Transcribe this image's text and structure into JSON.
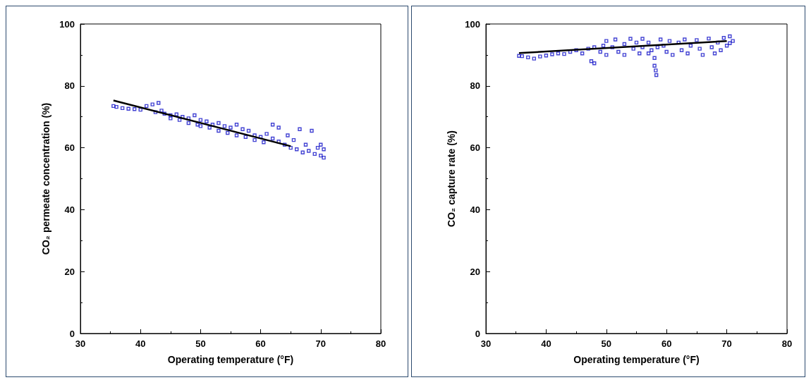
{
  "chart_data": [
    {
      "type": "scatter",
      "xlabel": "Operating temperature (°F)",
      "ylabel": "CO₂ permeate concentration (%)",
      "xlim": [
        30,
        80
      ],
      "ylim": [
        0,
        100
      ],
      "xticks": [
        30,
        40,
        50,
        60,
        70,
        80
      ],
      "yticks": [
        0,
        20,
        40,
        60,
        80,
        100
      ],
      "grid": false,
      "series": [
        {
          "marker": "square",
          "color": "#1414c8",
          "x": [
            35.5,
            36,
            37,
            38,
            39,
            40,
            41,
            42,
            42.5,
            43,
            43.5,
            44,
            45,
            45,
            46,
            46.5,
            47,
            48,
            48,
            49,
            49.5,
            50,
            50,
            51,
            51.5,
            52,
            53,
            53,
            54,
            54.5,
            55,
            56,
            56,
            57,
            57.5,
            58,
            59,
            59,
            60,
            60.5,
            61,
            62,
            62,
            63,
            63,
            64,
            64.5,
            65,
            65.5,
            66,
            66.5,
            67,
            67.5,
            68,
            68.5,
            69,
            69.5,
            70,
            70,
            70.5,
            70.5
          ],
          "values": [
            73.5,
            73.2,
            72.8,
            72.6,
            72.5,
            72.3,
            73.5,
            74,
            71.5,
            74.5,
            72,
            71,
            70.5,
            69.5,
            70.8,
            69,
            70,
            69.5,
            68,
            70.5,
            67.5,
            69,
            67,
            68.5,
            66.5,
            67.5,
            68,
            65.5,
            67,
            64.8,
            66.5,
            67.5,
            64,
            66,
            63.5,
            65.5,
            64,
            62.5,
            63.5,
            61.8,
            64.5,
            63,
            67.5,
            62,
            66.5,
            61,
            64,
            60,
            62.5,
            59.5,
            66,
            58.5,
            61,
            59,
            65.5,
            58,
            60,
            57.5,
            61,
            59.5,
            56.8
          ]
        },
        {
          "type": "line",
          "marker": "none",
          "color": "#000000",
          "x": [
            35.5,
            65
          ],
          "values": [
            75.3,
            60.5
          ]
        }
      ]
    },
    {
      "type": "scatter",
      "xlabel": "Operating temperature (°F)",
      "ylabel": "CO₂ capture rate (%)",
      "xlim": [
        30,
        80
      ],
      "ylim": [
        0,
        100
      ],
      "xticks": [
        30,
        40,
        50,
        60,
        70,
        80
      ],
      "yticks": [
        0,
        20,
        40,
        60,
        80,
        100
      ],
      "grid": false,
      "series": [
        {
          "marker": "square",
          "color": "#1414c8",
          "x": [
            35.5,
            36,
            37,
            38,
            39,
            40,
            41,
            42,
            43,
            44,
            45,
            46,
            47,
            47.5,
            48,
            48,
            49,
            49.5,
            50,
            50,
            51,
            51.5,
            52,
            53,
            53,
            54,
            54.5,
            55,
            55.5,
            56,
            56,
            57,
            57,
            57.5,
            58,
            58,
            58.2,
            58.3,
            58.5,
            59,
            59.5,
            60,
            60.5,
            61,
            62,
            62.5,
            63,
            63.5,
            64,
            65,
            65.5,
            66,
            67,
            67.5,
            68,
            68.5,
            69,
            69.5,
            70,
            70.5,
            70.5,
            71
          ],
          "values": [
            89.7,
            89.6,
            89.2,
            88.8,
            89.5,
            89.8,
            90.2,
            90.5,
            90.3,
            91,
            91.5,
            90.5,
            92,
            88,
            87.3,
            92.5,
            91,
            93,
            94.5,
            90,
            92.5,
            95,
            91,
            93.5,
            90,
            95.2,
            92,
            94,
            90.5,
            95.2,
            92.5,
            94,
            90.5,
            91.5,
            89,
            86.5,
            85,
            83.5,
            92.5,
            95,
            93,
            91,
            94.5,
            90,
            94,
            91.5,
            95,
            90.5,
            93,
            94.8,
            92,
            90,
            95.3,
            92.5,
            90.5,
            94,
            91.5,
            95.5,
            93,
            96,
            93.8,
            94.5
          ]
        },
        {
          "type": "line",
          "marker": "none",
          "color": "#000000",
          "x": [
            35.5,
            70
          ],
          "values": [
            90.6,
            94.5
          ]
        }
      ]
    }
  ]
}
